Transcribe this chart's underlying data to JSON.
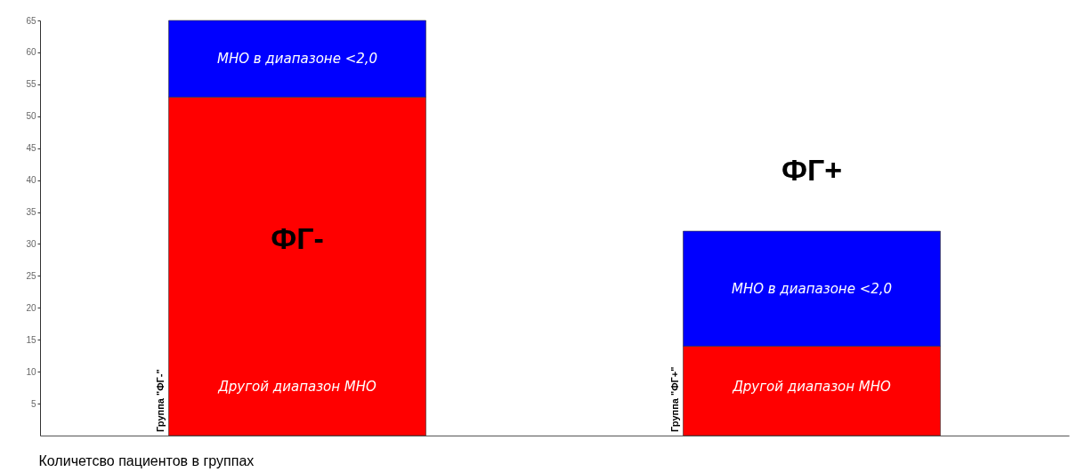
{
  "chart_data": {
    "type": "bar",
    "stacked": true,
    "xlabel": "Количетсво пациентов в группах",
    "categories": [
      "Группа \"ФГ-\"",
      "Группа \"ФГ+\""
    ],
    "series": [
      {
        "name": "Другой диапазон МНО",
        "color": "#ff0000",
        "values": [
          53,
          14
        ]
      },
      {
        "name": "МНО в диапазоне <2,0",
        "color": "#0000ff",
        "values": [
          12,
          18
        ]
      }
    ],
    "ylim": [
      0,
      65
    ],
    "yticks": [
      5,
      10,
      15,
      20,
      25,
      30,
      35,
      40,
      45,
      50,
      55,
      60,
      65
    ],
    "grid": false,
    "annotations": [
      "ФГ-",
      "ФГ+"
    ]
  }
}
